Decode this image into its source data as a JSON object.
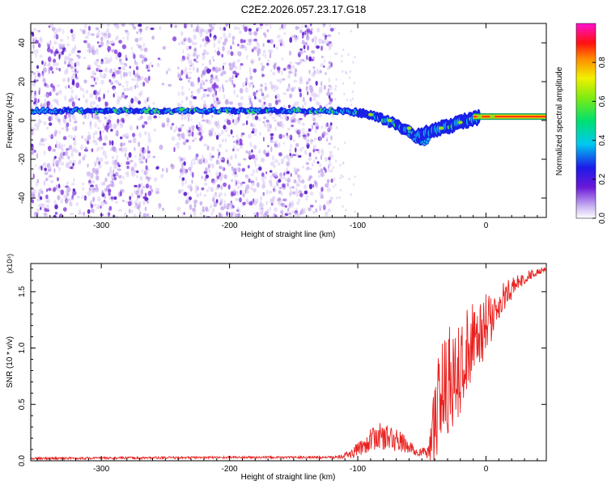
{
  "title": "C2E2.2026.057.23.17.G18",
  "chart_data": [
    {
      "type": "heatmap",
      "xlabel": "Height of straight line (km)",
      "ylabel": "Frequency (Hz)",
      "xlim": [
        -355,
        47
      ],
      "ylim": [
        -50,
        50
      ],
      "xticks": [
        -300,
        -200,
        -100,
        0
      ],
      "yticks": [
        -40,
        -20,
        0,
        20,
        40
      ],
      "colorbar": {
        "label": "Normalized spectral amplitude",
        "range": [
          0,
          1
        ],
        "ticks": [
          "0.0",
          "0.2",
          "0.4",
          "0.6",
          "0.8"
        ]
      },
      "main_trace": {
        "description_x": [
          -355,
          -120,
          -110,
          -90,
          -70,
          -55,
          -45,
          -35,
          -20,
          -10,
          0,
          47
        ],
        "frequency_hz": [
          5,
          5,
          5,
          3,
          -2,
          -8,
          -6,
          -4,
          -1,
          1,
          2,
          2
        ]
      },
      "secondary_trace": {
        "x": [
          -60,
          -55,
          -50,
          -45
        ],
        "frequency_hz": [
          -8,
          -10,
          -12,
          -10
        ]
      },
      "noise_region_x": [
        -355,
        -120
      ]
    },
    {
      "type": "line",
      "xlabel": "Height of straight line (km)",
      "ylabel": "SNR (10 * v/v)",
      "multiplier": "(x10⁴)",
      "xlim": [
        -355,
        47
      ],
      "ylim": [
        0,
        1.75
      ],
      "xticks": [
        -300,
        -200,
        -100,
        0
      ],
      "yticks": [
        "0.0",
        "0.5",
        "1.0",
        "1.5"
      ],
      "color": "#e8211f",
      "envelope": {
        "x": [
          -355,
          -200,
          -120,
          -105,
          -95,
          -85,
          -75,
          -65,
          -55,
          -45,
          -40,
          -35,
          -25,
          -15,
          -5,
          5,
          15,
          25,
          35,
          47
        ],
        "mean": [
          0.02,
          0.03,
          0.03,
          0.06,
          0.14,
          0.22,
          0.2,
          0.16,
          0.08,
          0.07,
          0.35,
          0.65,
          0.8,
          0.95,
          1.15,
          1.3,
          1.48,
          1.58,
          1.65,
          1.7
        ],
        "spread": [
          0.01,
          0.01,
          0.01,
          0.04,
          0.08,
          0.12,
          0.12,
          0.09,
          0.04,
          0.05,
          0.3,
          0.4,
          0.4,
          0.35,
          0.28,
          0.18,
          0.1,
          0.06,
          0.04,
          0.02
        ]
      }
    }
  ]
}
